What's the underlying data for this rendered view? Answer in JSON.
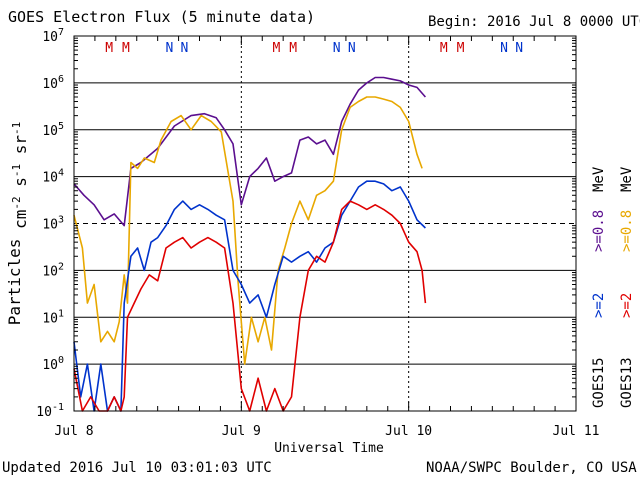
{
  "header": {
    "title": "GOES Electron Flux (5 minute data)",
    "begin": "Begin: 2016 Jul 8 0000 UTC"
  },
  "footer": {
    "updated": "Updated 2016 Jul 10 03:01:03 UTC",
    "credit": "NOAA/SWPC Boulder, CO USA"
  },
  "colors": {
    "goes13_08": "#e8a800",
    "goes15_08": "#5b0f8f",
    "goes13_2": "#e00000",
    "goes15_2": "#0033cc",
    "marker_m": "#cc0000",
    "marker_n": "#0033cc",
    "threshold": "#000000"
  },
  "legend": {
    "satellite_13": "GOES13",
    "satellite_15": "GOES15",
    "ch_2": ">=2",
    "ch_08": ">=0.8",
    "unit": "MeV"
  },
  "markers": {
    "day1": [
      "M",
      "M",
      "N",
      "N"
    ],
    "day2": [
      "M",
      "M",
      "N",
      "N"
    ],
    "day3": [
      "M",
      "M",
      "N",
      "N"
    ]
  },
  "chart_data": {
    "type": "line",
    "title": "GOES Electron Flux (5 minute data)",
    "xlabel": "Universal Time",
    "ylabel": "Particles cm^-2 s^-1 sr^-1",
    "y_scale": "log",
    "ylim": [
      0.1,
      10000000
    ],
    "y_ticks": [
      "10^-1",
      "10^0",
      "10^1",
      "10^2",
      "10^3",
      "10^4",
      "10^5",
      "10^6",
      "10^7"
    ],
    "x_ticks": [
      "Jul 8",
      "Jul 9",
      "Jul 10",
      "Jul 11"
    ],
    "threshold": 1000,
    "series": [
      {
        "name": "GOES15 >=0.8 MeV",
        "color_key": "goes15_08",
        "points": [
          [
            0.0,
            7000
          ],
          [
            0.06,
            4000
          ],
          [
            0.12,
            2500
          ],
          [
            0.18,
            1200
          ],
          [
            0.24,
            1600
          ],
          [
            0.3,
            900
          ],
          [
            0.34,
            15000
          ],
          [
            0.4,
            20000
          ],
          [
            0.5,
            40000
          ],
          [
            0.6,
            120000
          ],
          [
            0.7,
            200000
          ],
          [
            0.78,
            220000
          ],
          [
            0.85,
            180000
          ],
          [
            0.9,
            100000
          ],
          [
            0.95,
            50000
          ],
          [
            1.0,
            2500
          ],
          [
            1.05,
            10000
          ],
          [
            1.1,
            15000
          ],
          [
            1.15,
            25000
          ],
          [
            1.2,
            8000
          ],
          [
            1.25,
            10000
          ],
          [
            1.3,
            12000
          ],
          [
            1.35,
            60000
          ],
          [
            1.4,
            70000
          ],
          [
            1.45,
            50000
          ],
          [
            1.5,
            60000
          ],
          [
            1.55,
            30000
          ],
          [
            1.6,
            150000
          ],
          [
            1.65,
            350000
          ],
          [
            1.7,
            700000
          ],
          [
            1.75,
            1000000
          ],
          [
            1.8,
            1300000
          ],
          [
            1.85,
            1300000
          ],
          [
            1.9,
            1200000
          ],
          [
            1.95,
            1100000
          ],
          [
            2.0,
            900000
          ],
          [
            2.05,
            800000
          ],
          [
            2.1,
            500000
          ]
        ]
      },
      {
        "name": "GOES13 >=0.8 MeV",
        "color_key": "goes13_08",
        "points": [
          [
            0.0,
            1500
          ],
          [
            0.05,
            300
          ],
          [
            0.08,
            20
          ],
          [
            0.12,
            50
          ],
          [
            0.16,
            3
          ],
          [
            0.2,
            5
          ],
          [
            0.24,
            3
          ],
          [
            0.27,
            8
          ],
          [
            0.3,
            80
          ],
          [
            0.32,
            20
          ],
          [
            0.34,
            20000
          ],
          [
            0.38,
            15000
          ],
          [
            0.42,
            25000
          ],
          [
            0.48,
            20000
          ],
          [
            0.52,
            60000
          ],
          [
            0.58,
            150000
          ],
          [
            0.64,
            200000
          ],
          [
            0.7,
            100000
          ],
          [
            0.76,
            200000
          ],
          [
            0.82,
            150000
          ],
          [
            0.88,
            90000
          ],
          [
            0.95,
            3000
          ],
          [
            0.98,
            60
          ],
          [
            1.02,
            1
          ],
          [
            1.06,
            10
          ],
          [
            1.1,
            3
          ],
          [
            1.14,
            10
          ],
          [
            1.18,
            2
          ],
          [
            1.22,
            100
          ],
          [
            1.26,
            300
          ],
          [
            1.3,
            1000
          ],
          [
            1.35,
            3000
          ],
          [
            1.4,
            1200
          ],
          [
            1.45,
            4000
          ],
          [
            1.5,
            5000
          ],
          [
            1.55,
            8000
          ],
          [
            1.6,
            100000
          ],
          [
            1.65,
            300000
          ],
          [
            1.7,
            400000
          ],
          [
            1.75,
            500000
          ],
          [
            1.8,
            500000
          ],
          [
            1.85,
            450000
          ],
          [
            1.9,
            400000
          ],
          [
            1.95,
            300000
          ],
          [
            2.0,
            150000
          ],
          [
            2.05,
            30000
          ],
          [
            2.08,
            15000
          ]
        ]
      },
      {
        "name": "GOES15 >=2 MeV",
        "color_key": "goes15_2",
        "points": [
          [
            0.0,
            3
          ],
          [
            0.04,
            0.2
          ],
          [
            0.08,
            1
          ],
          [
            0.12,
            0.1
          ],
          [
            0.16,
            1
          ],
          [
            0.2,
            0.1
          ],
          [
            0.24,
            0.2
          ],
          [
            0.28,
            0.1
          ],
          [
            0.3,
            20
          ],
          [
            0.34,
            200
          ],
          [
            0.38,
            300
          ],
          [
            0.42,
            100
          ],
          [
            0.46,
            400
          ],
          [
            0.5,
            500
          ],
          [
            0.55,
            900
          ],
          [
            0.6,
            2000
          ],
          [
            0.65,
            3000
          ],
          [
            0.7,
            2000
          ],
          [
            0.75,
            2500
          ],
          [
            0.8,
            2000
          ],
          [
            0.85,
            1500
          ],
          [
            0.9,
            1200
          ],
          [
            0.95,
            100
          ],
          [
            1.0,
            50
          ],
          [
            1.05,
            20
          ],
          [
            1.1,
            30
          ],
          [
            1.15,
            10
          ],
          [
            1.2,
            50
          ],
          [
            1.25,
            200
          ],
          [
            1.3,
            150
          ],
          [
            1.35,
            200
          ],
          [
            1.4,
            250
          ],
          [
            1.45,
            150
          ],
          [
            1.5,
            300
          ],
          [
            1.55,
            400
          ],
          [
            1.6,
            1500
          ],
          [
            1.65,
            3000
          ],
          [
            1.7,
            6000
          ],
          [
            1.75,
            8000
          ],
          [
            1.8,
            8000
          ],
          [
            1.85,
            7000
          ],
          [
            1.9,
            5000
          ],
          [
            1.95,
            6000
          ],
          [
            2.0,
            3000
          ],
          [
            2.05,
            1200
          ],
          [
            2.1,
            800
          ]
        ]
      },
      {
        "name": "GOES13 >=2 MeV",
        "color_key": "goes13_2",
        "points": [
          [
            0.0,
            0.8
          ],
          [
            0.05,
            0.1
          ],
          [
            0.1,
            0.2
          ],
          [
            0.15,
            0.1
          ],
          [
            0.2,
            0.1
          ],
          [
            0.24,
            0.2
          ],
          [
            0.28,
            0.1
          ],
          [
            0.3,
            0.2
          ],
          [
            0.32,
            10
          ],
          [
            0.36,
            20
          ],
          [
            0.4,
            40
          ],
          [
            0.45,
            80
          ],
          [
            0.5,
            60
          ],
          [
            0.55,
            300
          ],
          [
            0.6,
            400
          ],
          [
            0.65,
            500
          ],
          [
            0.7,
            300
          ],
          [
            0.75,
            400
          ],
          [
            0.8,
            500
          ],
          [
            0.85,
            400
          ],
          [
            0.9,
            300
          ],
          [
            0.95,
            20
          ],
          [
            1.0,
            0.3
          ],
          [
            1.05,
            0.1
          ],
          [
            1.1,
            0.5
          ],
          [
            1.15,
            0.1
          ],
          [
            1.2,
            0.3
          ],
          [
            1.25,
            0.1
          ],
          [
            1.3,
            0.2
          ],
          [
            1.35,
            10
          ],
          [
            1.4,
            100
          ],
          [
            1.45,
            200
          ],
          [
            1.5,
            150
          ],
          [
            1.55,
            400
          ],
          [
            1.6,
            2000
          ],
          [
            1.65,
            3000
          ],
          [
            1.7,
            2500
          ],
          [
            1.75,
            2000
          ],
          [
            1.8,
            2500
          ],
          [
            1.85,
            2000
          ],
          [
            1.9,
            1500
          ],
          [
            1.95,
            1000
          ],
          [
            2.0,
            400
          ],
          [
            2.05,
            250
          ],
          [
            2.08,
            100
          ],
          [
            2.1,
            20
          ]
        ]
      }
    ]
  }
}
